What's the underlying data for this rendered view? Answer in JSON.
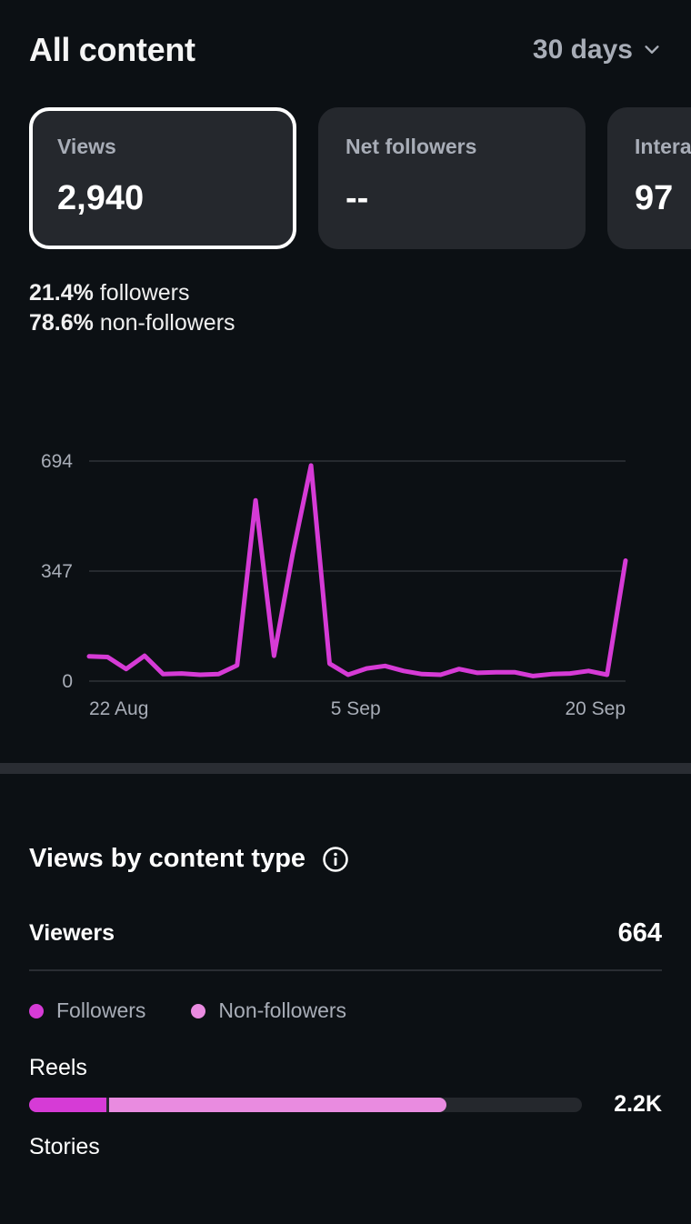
{
  "header": {
    "title": "All content",
    "range_label": "30 days",
    "range_icon": "chevron-down-icon"
  },
  "cards": [
    {
      "label": "Views",
      "value": "2,940",
      "selected": true
    },
    {
      "label": "Net followers",
      "value": "--",
      "selected": false
    },
    {
      "label": "Interactions",
      "value": "97",
      "selected": false
    }
  ],
  "audience_split": {
    "followers_pct": "21.4%",
    "followers_label": "followers",
    "non_followers_pct": "78.6%",
    "non_followers_label": "non-followers"
  },
  "chart_data": {
    "type": "line",
    "title": "",
    "xlabel": "",
    "ylabel": "",
    "y_ticks": [
      "694",
      "347",
      "0"
    ],
    "ylim": [
      0,
      694
    ],
    "x_ticks": [
      "22 Aug",
      "5 Sep",
      "20 Sep"
    ],
    "grid": true,
    "color": "#d63bd6",
    "series": [
      {
        "values": [
          78,
          76,
          38,
          80,
          22,
          24,
          20,
          22,
          50,
          570,
          80,
          400,
          680,
          55,
          20,
          40,
          48,
          32,
          22,
          20,
          38,
          26,
          28,
          28,
          16,
          22,
          24,
          32,
          20,
          380
        ]
      }
    ]
  },
  "content_type": {
    "title": "Views by content type",
    "info_icon": "info-icon",
    "viewers_label": "Viewers",
    "viewers_value": "664",
    "legend": [
      {
        "label": "Followers",
        "color": "#d63bd6"
      },
      {
        "label": "Non-followers",
        "color": "#e98be0"
      }
    ],
    "types": [
      {
        "label": "Reels",
        "value": "2.2K",
        "followers_share": 0.14,
        "non_followers_share": 0.61
      },
      {
        "label": "Stories",
        "value": ""
      }
    ]
  }
}
